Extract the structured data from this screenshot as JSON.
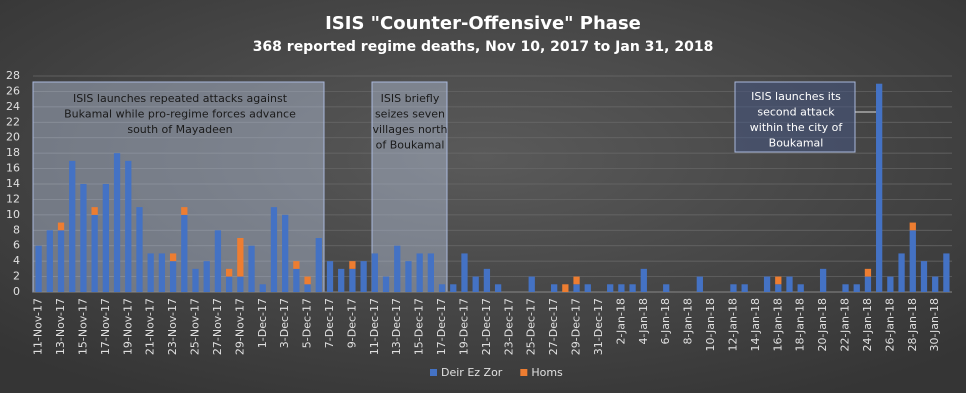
{
  "chart_data": {
    "type": "stacked_bar",
    "title": "ISIS \"Counter-Offensive\"  Phase",
    "subtitle": "368 reported regime deaths, Nov 10, 2017 to Jan 31, 2018",
    "categories": [
      "11-Nov-17",
      null,
      "13-Nov-17",
      null,
      "15-Nov-17",
      null,
      "17-Nov-17",
      null,
      "19-Nov-17",
      null,
      "21-Nov-17",
      null,
      "23-Nov-17",
      null,
      "25-Nov-17",
      null,
      "27-Nov-17",
      null,
      "29-Nov-17",
      null,
      "1-Dec-17",
      null,
      "3-Dec-17",
      null,
      "5-Dec-17",
      null,
      "7-Dec-17",
      null,
      "9-Dec-17",
      null,
      "11-Dec-17",
      null,
      "13-Dec-17",
      null,
      "15-Dec-17",
      null,
      "17-Dec-17",
      null,
      "19-Dec-17",
      null,
      "21-Dec-17",
      null,
      "23-Dec-17",
      null,
      "25-Dec-17",
      null,
      "27-Dec-17",
      null,
      "29-Dec-17",
      null,
      "31-Dec-17",
      null,
      "2-Jan-18",
      null,
      "4-Jan-18",
      null,
      "6-Jan-18",
      null,
      "8-Jan-18",
      null,
      "10-Jan-18",
      null,
      "12-Jan-18",
      null,
      "14-Jan-18",
      null,
      "16-Jan-18",
      null,
      "18-Jan-18",
      null,
      "20-Jan-18",
      null,
      "22-Jan-18",
      null,
      "24-Jan-18",
      null,
      "26-Jan-18",
      null,
      "28-Jan-18",
      null,
      "30-Jan-18",
      null
    ],
    "series": [
      {
        "name": "Deir Ez Zor",
        "color": "#4472c4",
        "values": [
          6,
          8,
          8,
          17,
          14,
          10,
          14,
          18,
          17,
          11,
          5,
          5,
          4,
          10,
          3,
          4,
          8,
          2,
          2,
          6,
          1,
          11,
          10,
          3,
          1,
          7,
          4,
          3,
          3,
          4,
          5,
          2,
          6,
          4,
          5,
          5,
          1,
          1,
          5,
          2,
          3,
          1,
          0,
          0,
          2,
          0,
          1,
          0,
          1,
          1,
          0,
          1,
          1,
          1,
          3,
          0,
          1,
          0,
          0,
          2,
          0,
          0,
          1,
          1,
          0,
          2,
          1,
          2,
          1,
          0,
          3,
          0,
          1,
          1,
          2,
          27,
          2,
          5,
          8,
          4,
          2,
          5
        ]
      },
      {
        "name": "Homs",
        "color": "#ed7d31",
        "values": [
          0,
          0,
          1,
          0,
          0,
          1,
          0,
          0,
          0,
          0,
          0,
          0,
          1,
          1,
          0,
          0,
          0,
          1,
          5,
          0,
          0,
          0,
          0,
          1,
          1,
          0,
          0,
          0,
          1,
          0,
          0,
          0,
          0,
          0,
          0,
          0,
          0,
          0,
          0,
          0,
          0,
          0,
          0,
          0,
          0,
          0,
          0,
          1,
          1,
          0,
          0,
          0,
          0,
          0,
          0,
          0,
          0,
          0,
          0,
          0,
          0,
          0,
          0,
          0,
          0,
          0,
          1,
          0,
          0,
          0,
          0,
          0,
          0,
          0,
          1,
          0,
          0,
          0,
          1,
          0,
          0,
          0
        ]
      }
    ],
    "ylim": [
      0,
      28
    ],
    "yticks": [
      0,
      2,
      4,
      6,
      8,
      10,
      12,
      14,
      16,
      18,
      20,
      22,
      24,
      26,
      28
    ],
    "grid": true,
    "legend": "bottom",
    "annotations": [
      {
        "lines": [
          "ISIS launches repeated attacks against",
          "Bukamal while pro-regime forces advance",
          "south of Mayadeen"
        ]
      },
      {
        "lines": [
          "ISIS briefly",
          "seizes seven",
          "villages north",
          "of Boukamal"
        ]
      },
      {
        "lines": [
          "ISIS launches its",
          "second attack",
          "within the city of",
          "Boukamal"
        ]
      }
    ]
  }
}
